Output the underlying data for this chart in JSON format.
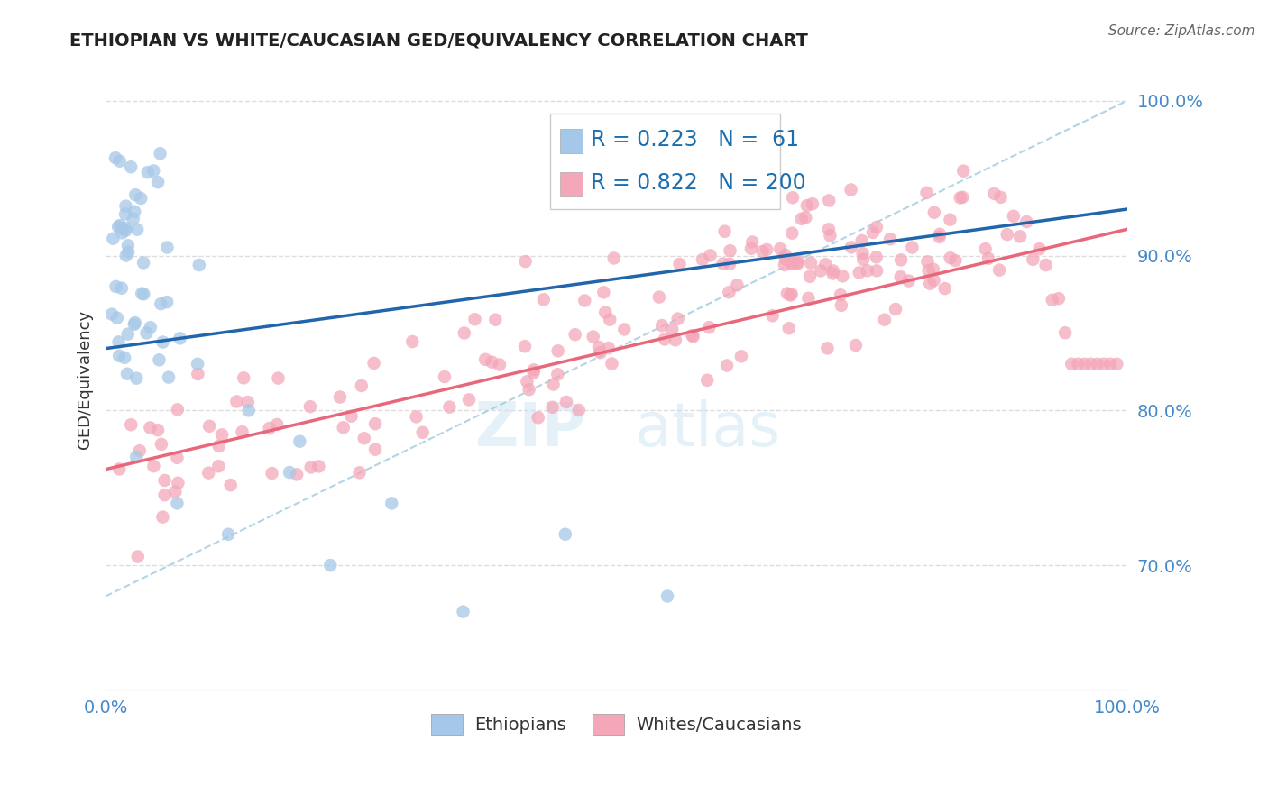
{
  "title": "ETHIOPIAN VS WHITE/CAUCASIAN GED/EQUIVALENCY CORRELATION CHART",
  "source": "Source: ZipAtlas.com",
  "ylabel": "GED/Equivalency",
  "watermark_line1": "ZIP",
  "watermark_line2": "atlas",
  "blue_R": 0.223,
  "blue_N": 61,
  "pink_R": 0.822,
  "pink_N": 200,
  "blue_color": "#a6c8e8",
  "pink_color": "#f4a7b9",
  "blue_line_color": "#2166ac",
  "pink_line_color": "#e8677a",
  "dashed_line_color": "#9ecae1",
  "title_color": "#222222",
  "stat_color": "#1a6faf",
  "ytick_color": "#4488cc",
  "background_color": "#ffffff",
  "grid_color": "#dddddd",
  "xlim": [
    0.0,
    1.0
  ],
  "ylim": [
    0.62,
    1.02
  ],
  "yticks": [
    0.7,
    0.8,
    0.9,
    1.0
  ],
  "ytick_labels": [
    "70.0%",
    "80.0%",
    "90.0%",
    "100.0%"
  ],
  "xtick_labels": [
    "0.0%",
    "100.0%"
  ]
}
